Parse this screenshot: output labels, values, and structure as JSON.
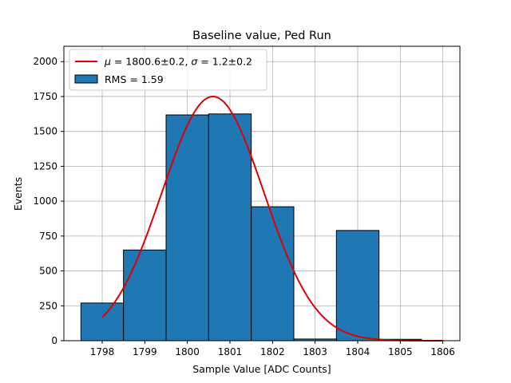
{
  "chart_data": {
    "type": "histogram",
    "title": "Baseline value, Ped Run",
    "xlabel": "Sample Value [ADC Counts]",
    "ylabel": "Events",
    "xlim": [
      1797.1,
      1806.4
    ],
    "ylim": [
      0,
      2110
    ],
    "grid": true,
    "xticks": [
      1798,
      1799,
      1800,
      1801,
      1802,
      1803,
      1804,
      1805,
      1806
    ],
    "yticks": [
      0,
      250,
      500,
      750,
      1000,
      1250,
      1500,
      1750,
      2000
    ],
    "bins": [
      {
        "x0": 1797.5,
        "x1": 1798.5,
        "count": 270
      },
      {
        "x0": 1798.5,
        "x1": 1799.5,
        "count": 650
      },
      {
        "x0": 1799.5,
        "x1": 1800.5,
        "count": 1618
      },
      {
        "x0": 1800.5,
        "x1": 1801.5,
        "count": 1625
      },
      {
        "x0": 1801.5,
        "x1": 1802.5,
        "count": 960
      },
      {
        "x0": 1802.5,
        "x1": 1803.5,
        "count": 12
      },
      {
        "x0": 1803.5,
        "x1": 1804.5,
        "count": 790
      },
      {
        "x0": 1804.5,
        "x1": 1805.5,
        "count": 10
      }
    ],
    "fit": {
      "type": "gaussian",
      "mu": 1800.6,
      "sigma": 1.2,
      "amplitude": 1750,
      "x_range": [
        1798,
        1806
      ]
    },
    "legend_location": "upper-left",
    "legend": {
      "fit_label_parts": {
        "mu_sym": "μ",
        "mu_val": " = 1800.6±0.2, ",
        "sigma_sym": "σ",
        "sigma_val": " = 1.2±0.2"
      },
      "hist_label": "RMS = 1.59"
    },
    "colors": {
      "bar_fill": "#1f77b4",
      "bar_edge": "#000000",
      "fit_line": "#e00000",
      "grid": "#b0b0b0"
    }
  }
}
